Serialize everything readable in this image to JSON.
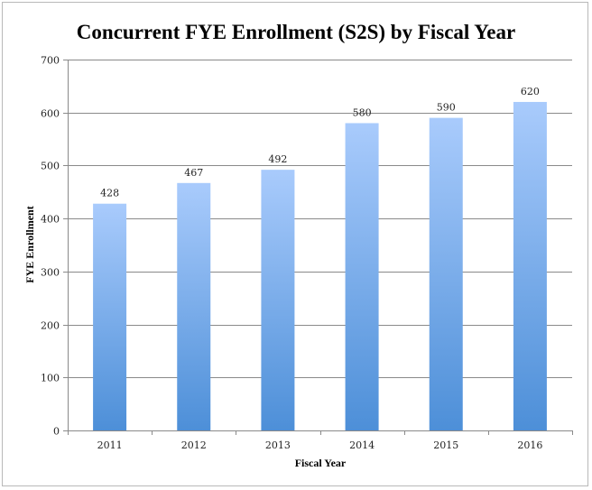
{
  "chart_data": {
    "type": "bar",
    "title": "Concurrent FYE Enrollment (S2S) by Fiscal Year",
    "xlabel": "Fiscal Year",
    "ylabel": "FYE Enrollment",
    "categories": [
      "2011",
      "2012",
      "2013",
      "2014",
      "2015",
      "2016"
    ],
    "values": [
      428,
      467,
      492,
      580,
      590,
      620
    ],
    "ylim": [
      0,
      700
    ],
    "yticks": [
      0,
      100,
      200,
      300,
      400,
      500,
      600,
      700
    ],
    "grid": true,
    "legend": "none",
    "colors": {
      "bar_top": "#a9cbfc",
      "bar_bottom": "#4d8fd8",
      "grid": "#8a8a8a"
    }
  }
}
